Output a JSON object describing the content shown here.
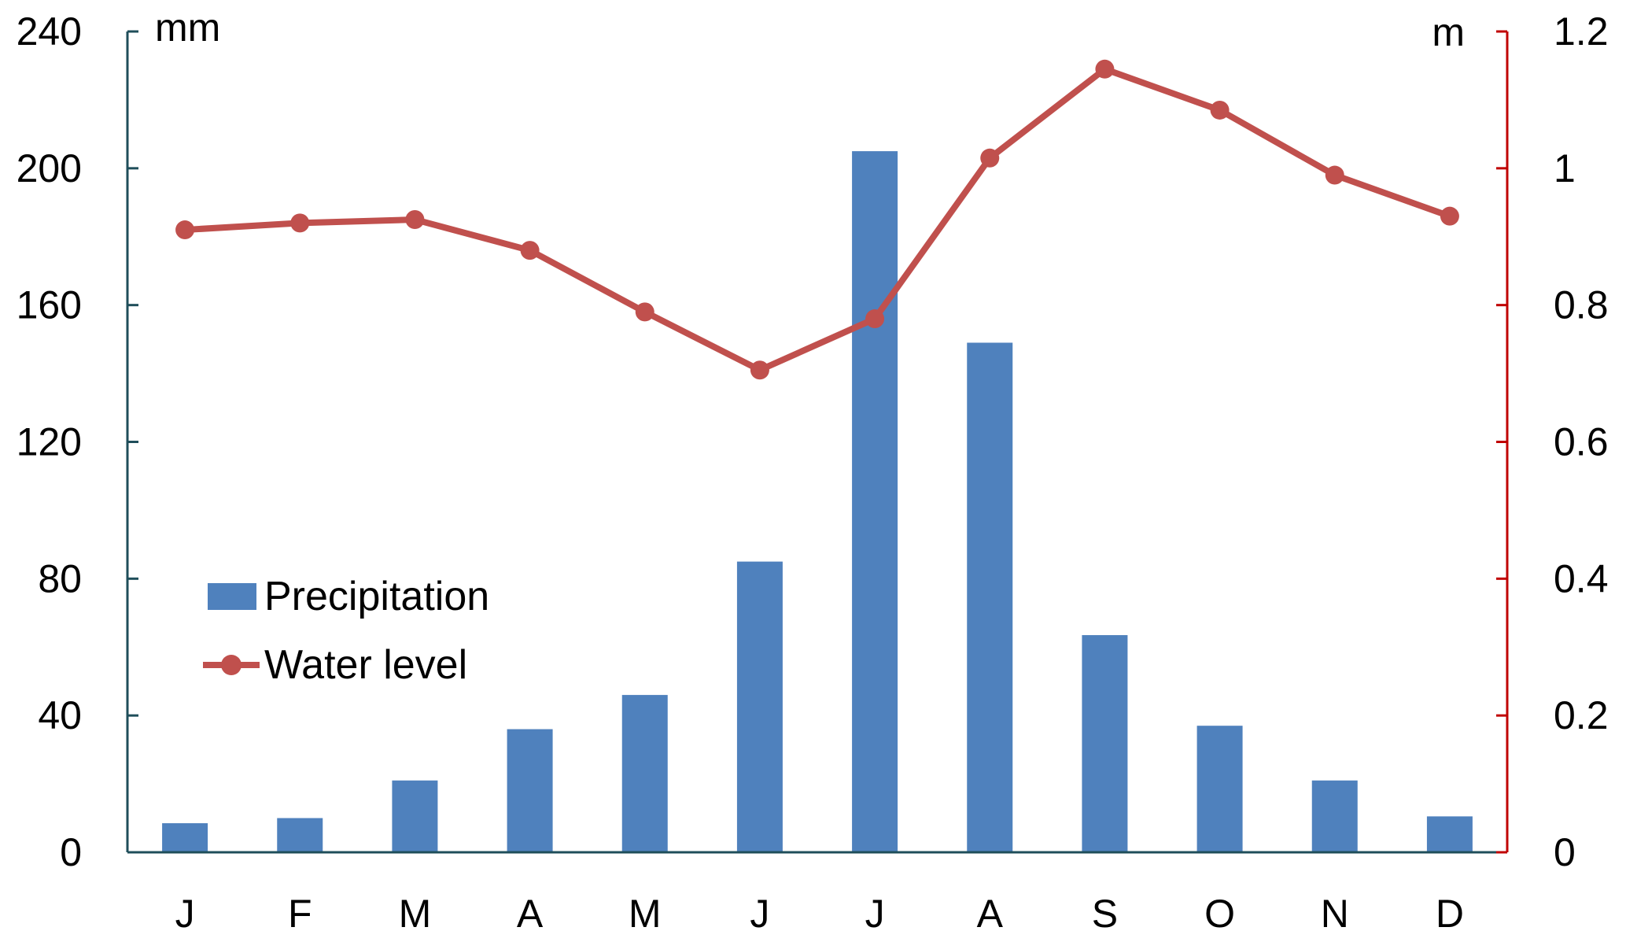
{
  "chart_data": {
    "type": "bar",
    "categories": [
      "J",
      "F",
      "M",
      "A",
      "M",
      "J",
      "J",
      "A",
      "S",
      "O",
      "N",
      "D"
    ],
    "series": [
      {
        "name": "Precipitation",
        "type": "bar",
        "axis": "left",
        "color": "#4f81bd",
        "values": [
          8.5,
          10,
          21,
          36,
          46,
          85,
          205,
          149,
          63.5,
          37,
          21,
          10.5
        ]
      },
      {
        "name": "Water level",
        "type": "line",
        "axis": "right",
        "color": "#c0504d",
        "values": [
          0.91,
          0.92,
          0.925,
          0.88,
          0.79,
          0.705,
          0.78,
          1.015,
          1.145,
          1.085,
          0.99,
          0.93
        ]
      }
    ],
    "y_left": {
      "unit": "mm",
      "ylim": [
        0,
        240
      ],
      "ticks": [
        "0",
        "40",
        "80",
        "120",
        "160",
        "200",
        "240"
      ],
      "tick_values": [
        0,
        40,
        80,
        120,
        160,
        200,
        240
      ],
      "axis_color": "#1f4e5a"
    },
    "y_right": {
      "unit": "m",
      "ylim": [
        0,
        1.2
      ],
      "ticks": [
        "0",
        "0.2",
        "0.4",
        "0.6",
        "0.8",
        "1",
        "1.2"
      ],
      "tick_values": [
        0,
        0.2,
        0.4,
        0.6,
        0.8,
        1,
        1.2
      ],
      "axis_color": "#c00000"
    },
    "grid": false,
    "legend": "left-middle"
  }
}
